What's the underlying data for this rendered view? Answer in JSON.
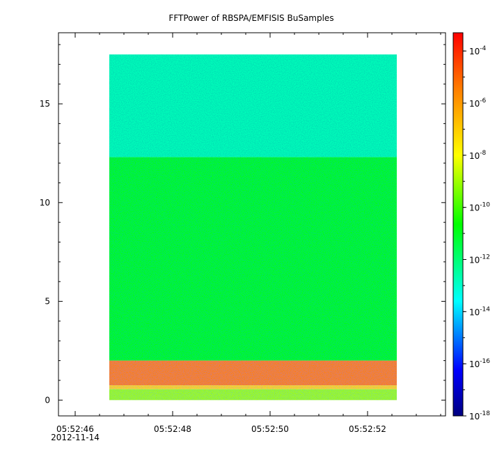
{
  "chart_data": {
    "type": "heatmap",
    "title": "FFTPower of RBSPA/EMFISIS  BuSamples",
    "x_ticks": [
      {
        "time": "05:52:46",
        "date": "2012-11-14"
      },
      {
        "time": "05:52:48"
      },
      {
        "time": "05:52:50"
      },
      {
        "time": "05:52:52"
      }
    ],
    "y_ticks": [
      0,
      5,
      10,
      15
    ],
    "ylim": [
      -0.8,
      18.6
    ],
    "colorbar": {
      "scale": "log",
      "range_exp": [
        -18,
        -3.3
      ],
      "ticks": [
        {
          "base": "10",
          "exp": "-4"
        },
        {
          "base": "10",
          "exp": "-6"
        },
        {
          "base": "10",
          "exp": "-8"
        },
        {
          "base": "10",
          "exp": "-10"
        },
        {
          "base": "10",
          "exp": "-12"
        },
        {
          "base": "10",
          "exp": "-14"
        },
        {
          "base": "10",
          "exp": "-16"
        },
        {
          "base": "10",
          "exp": "-18"
        }
      ]
    },
    "data_extent": {
      "t_start": "05:52:46.7",
      "t_end": "05:52:52.6",
      "y_min": 0,
      "y_max": 17.5
    },
    "bands": [
      {
        "y_from": 12.3,
        "y_to": 17.5,
        "log_power": -12.8
      },
      {
        "y_from": 2.0,
        "y_to": 12.3,
        "log_power": -10.8
      },
      {
        "y_from": 0.75,
        "y_to": 2.0,
        "log_power": -5.5
      },
      {
        "y_from": 0.55,
        "y_to": 0.75,
        "log_power": -7.2
      },
      {
        "y_from": 0.0,
        "y_to": 0.55,
        "log_power": -9.0
      }
    ]
  }
}
